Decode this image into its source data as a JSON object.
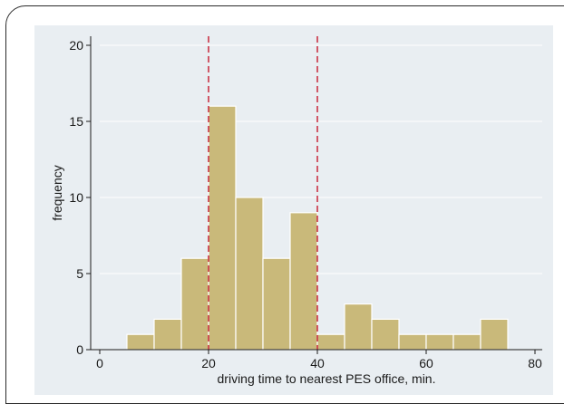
{
  "chart_data": {
    "type": "bar",
    "title": "",
    "xlabel": "driving time to nearest PES office, min.",
    "ylabel": "frequency",
    "xlim": [
      0,
      80
    ],
    "ylim": [
      0,
      20
    ],
    "x_ticks": [
      "0",
      "20",
      "40",
      "60",
      "80"
    ],
    "y_ticks": [
      "0",
      "5",
      "10",
      "15",
      "20"
    ],
    "bin_width": 5,
    "bins": [
      {
        "start": 5,
        "end": 10,
        "value": 1
      },
      {
        "start": 10,
        "end": 15,
        "value": 2
      },
      {
        "start": 15,
        "end": 20,
        "value": 6
      },
      {
        "start": 20,
        "end": 25,
        "value": 16
      },
      {
        "start": 25,
        "end": 30,
        "value": 10
      },
      {
        "start": 30,
        "end": 35,
        "value": 6
      },
      {
        "start": 35,
        "end": 40,
        "value": 9
      },
      {
        "start": 40,
        "end": 45,
        "value": 1
      },
      {
        "start": 45,
        "end": 50,
        "value": 3
      },
      {
        "start": 50,
        "end": 55,
        "value": 2
      },
      {
        "start": 55,
        "end": 60,
        "value": 1
      },
      {
        "start": 60,
        "end": 65,
        "value": 1
      },
      {
        "start": 65,
        "end": 70,
        "value": 1
      },
      {
        "start": 70,
        "end": 75,
        "value": 2
      }
    ],
    "reference_lines_x": [
      20,
      40
    ],
    "grid": "horizontal",
    "colors": {
      "bar_fill": "#c9b97a",
      "bar_stroke": "#ffffff",
      "reference_line": "#c8273b",
      "plot_background": "#e9eef2",
      "grid": "#ffffff"
    }
  }
}
